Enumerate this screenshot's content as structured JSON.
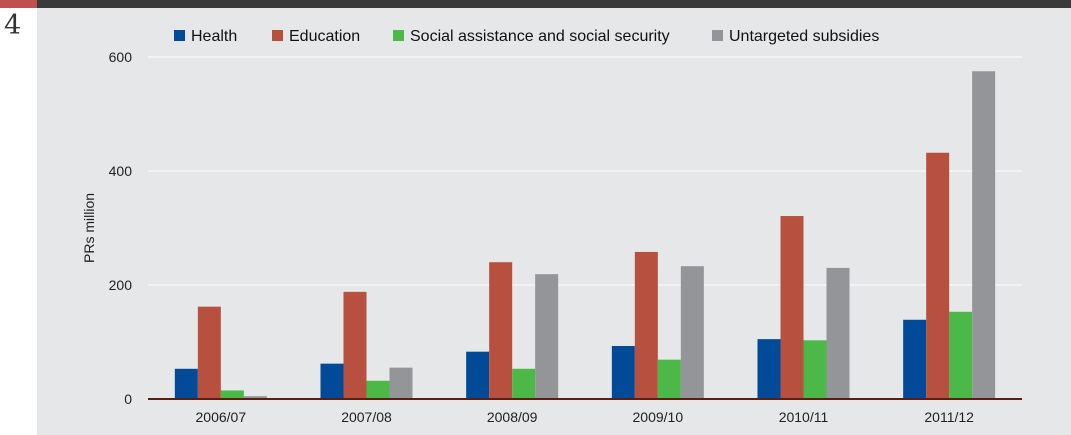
{
  "page": {
    "number": "4"
  },
  "colors": {
    "background": "#e6e7e8",
    "topbar": "#3a3a3a",
    "accent": "#c0504d",
    "axis": "#5a1e12"
  },
  "chart_data": {
    "type": "bar",
    "title": "",
    "xlabel": "",
    "ylabel": "PRs million",
    "ylim": [
      0,
      600
    ],
    "yticks": [
      0,
      200,
      400,
      600
    ],
    "grid": true,
    "legend_position": "top",
    "categories": [
      "2006/07",
      "2007/08",
      "2008/09",
      "2009/10",
      "2010/11",
      "2011/12"
    ],
    "series": [
      {
        "name": "Health",
        "color": "#004a97",
        "values": [
          53,
          62,
          83,
          93,
          105,
          139
        ]
      },
      {
        "name": "Education",
        "color": "#b8503f",
        "values": [
          162,
          188,
          240,
          258,
          321,
          432
        ]
      },
      {
        "name": "Social assistance and social security",
        "color": "#4cb848",
        "values": [
          15,
          32,
          53,
          69,
          103,
          153
        ]
      },
      {
        "name": "Untargeted subsidies",
        "color": "#939598",
        "values": [
          5,
          55,
          219,
          233,
          230,
          575
        ]
      }
    ]
  }
}
